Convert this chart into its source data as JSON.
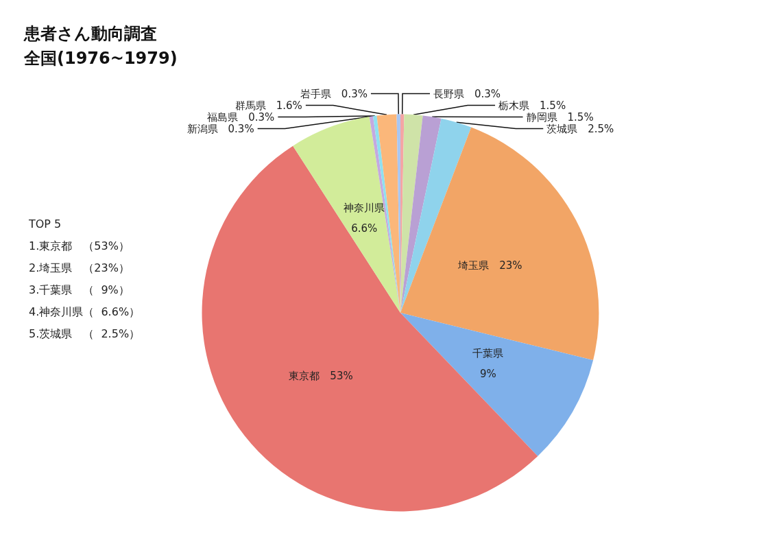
{
  "chart_data": {
    "type": "pie",
    "title": "患者さん動向調査",
    "subtitle": "全国(1976~1979)",
    "categories": [
      "長野県",
      "栃木県",
      "静岡県",
      "茨城県",
      "埼玉県",
      "千葉県",
      "東京都",
      "神奈川県",
      "新潟県",
      "福島県",
      "群馬県",
      "岩手県"
    ],
    "values": [
      0.3,
      1.5,
      1.5,
      2.5,
      23,
      9,
      53,
      6.6,
      0.3,
      0.3,
      1.6,
      0.3
    ],
    "colors": [
      "#f4a5a5",
      "#cfe3a8",
      "#b9a0d4",
      "#8fd3ec",
      "#f2a566",
      "#7fb0ea",
      "#e87570",
      "#d2ec9a",
      "#c4a9e0",
      "#8fe0f0",
      "#fbb77a",
      "#a9c6f2"
    ],
    "value_labels": [
      "0.3%",
      "1.5%",
      "1.5%",
      "2.5%",
      "23%",
      "9%",
      "53%",
      "6.6%",
      "0.3%",
      "0.3%",
      "1.6%",
      "0.3%"
    ],
    "annotations": [
      "TOP 5",
      "1.東京都　（53%）",
      "2.埼玉県　（23%）",
      "3.千葉県　（  9%）",
      "4.神奈川県（  6.6%）",
      "5.茨城県　（  2.5%）"
    ]
  }
}
